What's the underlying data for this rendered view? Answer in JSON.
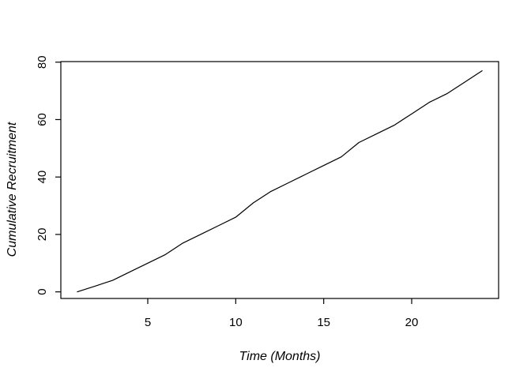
{
  "figure": {
    "background": "#ffffff"
  },
  "chart_data": {
    "type": "line",
    "title": "",
    "xlabel": "Time (Months)",
    "ylabel": "Cumulative Recruitment",
    "x": [
      1,
      2,
      3,
      4,
      5,
      6,
      7,
      8,
      9,
      10,
      11,
      12,
      13,
      14,
      15,
      16,
      17,
      18,
      19,
      20,
      21,
      22,
      23,
      24
    ],
    "series": [
      {
        "name": "cumulative-recruitment",
        "values": [
          0,
          2,
          4,
          7,
          10,
          13,
          17,
          20,
          23,
          26,
          31,
          35,
          38,
          41,
          44,
          47,
          52,
          55,
          58,
          62,
          66,
          69,
          73,
          77
        ]
      }
    ],
    "x_ticks": [
      5,
      10,
      15,
      20
    ],
    "y_ticks": [
      0,
      20,
      40,
      60,
      80
    ],
    "xlim": [
      0.06,
      24.94
    ],
    "ylim": [
      -2.3,
      80.2
    ],
    "grid": false,
    "legend": false,
    "line_color": "#000000",
    "axis_color": "#000000",
    "text_color": "#000000"
  }
}
